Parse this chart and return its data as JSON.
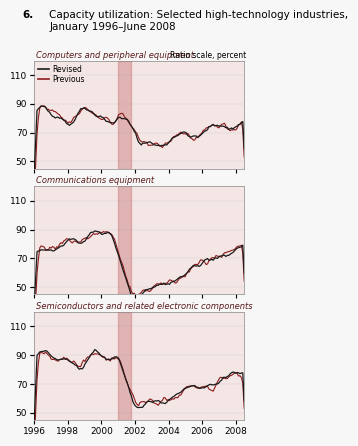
{
  "title_num": "6.",
  "title_text": "Capacity utilization: Selected high-technology industries,\nJanuary 1996–June 2008",
  "panel_titles": [
    "Computers and peripheral equipment",
    "Communications equipment",
    "Semiconductors and related electronic components"
  ],
  "ratio_label": "Ratio scale, percent",
  "legend_revised": "Revised",
  "legend_previous": "Previous",
  "bg_color": "#f5e6e6",
  "shade_color": "#c97878",
  "shade_alpha": 0.45,
  "shade_start": 2001.0,
  "shade_end": 2001.75,
  "revised_color": "#1a1a1a",
  "previous_color": "#8b1a1a",
  "ylim": [
    45,
    120
  ],
  "yticks": [
    50,
    70,
    90,
    110
  ],
  "xstart": 1996.0,
  "xend": 2008.5,
  "xticks": [
    1996,
    1998,
    2000,
    2002,
    2004,
    2006,
    2008
  ]
}
